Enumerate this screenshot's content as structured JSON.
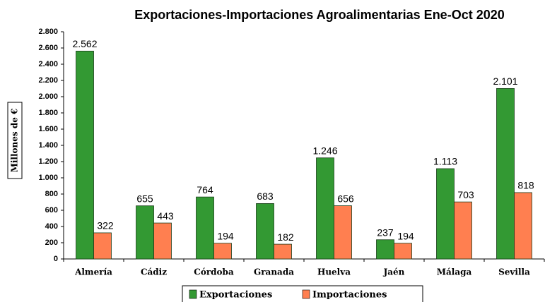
{
  "chart_data": {
    "type": "bar",
    "title": "Exportaciones-Importaciones Agroalimentarias Ene-Oct 2020",
    "y_label": "Millones de €",
    "categories": [
      "Almería",
      "Cádiz",
      "Córdoba",
      "Granada",
      "Huelva",
      "Jaén",
      "Málaga",
      "Sevilla"
    ],
    "series": [
      {
        "name": "Exportaciones",
        "color": "#339933",
        "values": [
          2562,
          655,
          764,
          683,
          1246,
          237,
          1113,
          2101
        ],
        "value_labels": [
          "2.562",
          "655",
          "764",
          "683",
          "1.246",
          "237",
          "1.113",
          "2.101"
        ]
      },
      {
        "name": "Importaciones",
        "color": "#ff7f50",
        "values": [
          322,
          443,
          194,
          182,
          656,
          194,
          703,
          818
        ],
        "value_labels": [
          "322",
          "443",
          "194",
          "182",
          "656",
          "194",
          "703",
          "818"
        ]
      }
    ],
    "ylim": [
      0,
      2800
    ],
    "yticks": [
      0,
      200,
      400,
      600,
      800,
      {
        "value": 1000,
        "label": "1.000"
      },
      {
        "value": 1200,
        "label": "1.200"
      },
      {
        "value": 1400,
        "label": "1.400"
      },
      {
        "value": 1600,
        "label": "1.600"
      },
      {
        "value": 1800,
        "label": "1.800"
      },
      {
        "value": 2000,
        "label": "2.000"
      },
      {
        "value": 2200,
        "label": "2.200"
      },
      {
        "value": 2400,
        "label": "2.400"
      },
      {
        "value": 2600,
        "label": "2.600"
      },
      {
        "value": 2800,
        "label": "2.800"
      }
    ],
    "legend": "bottom"
  }
}
